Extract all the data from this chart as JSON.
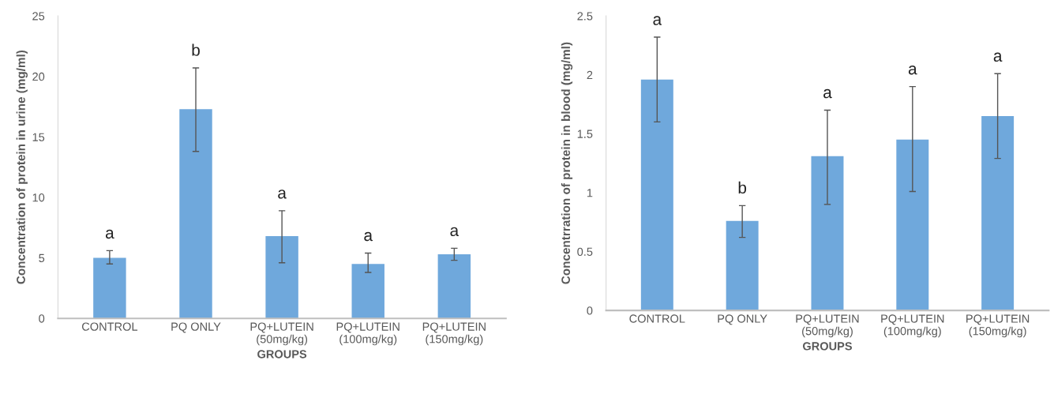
{
  "chart_data": [
    {
      "type": "bar",
      "xlabel": "GROUPS",
      "ylabel": "Concentration of protein in urine (mg/ml)",
      "categories": [
        "CONTROL",
        "PQ ONLY",
        "PQ+LUTEIN\n(50mg/kg)",
        "PQ+LUTEIN\n(100mg/kg)",
        "PQ+LUTEIN\n(150mg/kg)"
      ],
      "values": [
        5.0,
        17.3,
        6.8,
        4.5,
        5.3
      ],
      "color": "#6fa8dc",
      "errors": [
        [
          4.5,
          5.6
        ],
        [
          13.8,
          20.7
        ],
        [
          4.6,
          8.9
        ],
        [
          3.8,
          5.4
        ],
        [
          4.8,
          5.8
        ]
      ],
      "ylim": [
        0,
        25
      ],
      "yticks": [
        0,
        5,
        10,
        15,
        20,
        25
      ],
      "grid": false,
      "legend": false,
      "annotations": [
        "a",
        "b",
        "a",
        "a",
        "a"
      ]
    },
    {
      "type": "bar",
      "xlabel": "GROUPS",
      "ylabel": "Concentrration of protein in blood (mg/ml)",
      "categories": [
        "CONTROL",
        "PQ ONLY",
        "PQ+LUTEIN\n(50mg/kg)",
        "PQ+LUTEIN\n(100mg/kg)",
        "PQ+LUTEIN\n(150mg/kg)"
      ],
      "values": [
        1.96,
        0.76,
        1.31,
        1.45,
        1.65
      ],
      "color": "#6fa8dc",
      "errors": [
        [
          1.6,
          2.32
        ],
        [
          0.62,
          0.89
        ],
        [
          0.9,
          1.7
        ],
        [
          1.01,
          1.9
        ],
        [
          1.29,
          2.01
        ]
      ],
      "ylim": [
        0,
        2.5
      ],
      "yticks": [
        0,
        0.5,
        1,
        1.5,
        2,
        2.5
      ],
      "grid": false,
      "legend": false,
      "annotations": [
        "a",
        "b",
        "a",
        "a",
        "a"
      ]
    }
  ]
}
